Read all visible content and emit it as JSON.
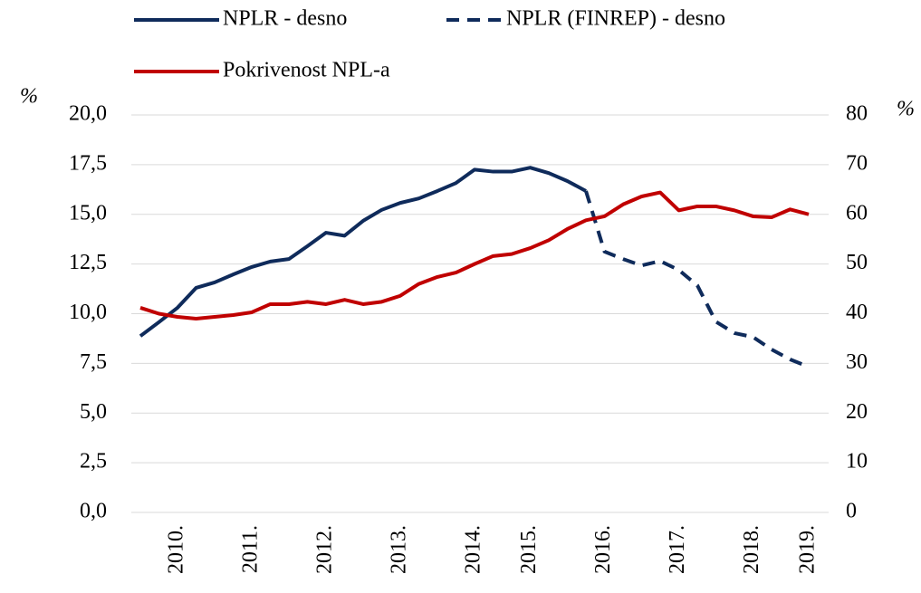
{
  "chart_data": {
    "type": "line",
    "ylabel": "%",
    "y2label": "%",
    "categories": [
      null,
      null,
      "2010.",
      null,
      null,
      null,
      "2011.",
      null,
      null,
      null,
      "2012.",
      null,
      null,
      null,
      "2013.",
      null,
      null,
      null,
      "2014.",
      null,
      null,
      "2015.",
      null,
      null,
      null,
      "2016.",
      null,
      null,
      null,
      "2017.",
      null,
      null,
      null,
      "2018.",
      null,
      null,
      "2019."
    ],
    "series": [
      {
        "name": "NPLR - desno",
        "color": "#0f2b5b",
        "dash": false,
        "axis": "y2",
        "values": [
          35.5,
          38.3,
          41.2,
          45.2,
          46.3,
          47.9,
          49.4,
          50.5,
          51.0,
          53.6,
          56.3,
          55.7,
          58.7,
          60.9,
          62.3,
          63.2,
          64.7,
          66.3,
          69.0,
          68.6,
          68.6,
          69.4,
          68.3,
          66.7,
          64.7,
          null,
          null,
          null,
          null,
          null,
          null,
          null,
          null,
          null,
          null,
          null,
          null
        ]
      },
      {
        "name": "NPLR (FINREP) - desno",
        "color": "#0f2b5b",
        "dash": true,
        "axis": "y2",
        "values": [
          null,
          null,
          null,
          null,
          null,
          null,
          null,
          null,
          null,
          null,
          null,
          null,
          null,
          null,
          null,
          null,
          null,
          null,
          null,
          null,
          null,
          null,
          null,
          null,
          64.7,
          52.5,
          51.0,
          49.7,
          50.6,
          48.8,
          45.7,
          38.4,
          36.1,
          35.3,
          32.8,
          30.8,
          29.3
        ]
      },
      {
        "name": "Pokrivenost NPL-a",
        "color": "#c00000",
        "dash": false,
        "values": [
          10.3,
          10.0,
          9.84,
          9.75,
          9.84,
          9.93,
          10.07,
          10.48,
          10.48,
          10.6,
          10.48,
          10.7,
          10.48,
          10.6,
          10.9,
          11.5,
          11.85,
          12.07,
          12.5,
          12.9,
          13.0,
          13.3,
          13.7,
          14.26,
          14.7,
          14.9,
          15.5,
          15.9,
          16.1,
          15.2,
          15.4,
          15.4,
          15.2,
          14.9,
          14.85,
          15.25,
          15.0
        ]
      }
    ],
    "ylim": [
      0,
      20
    ],
    "yticks": [
      {
        "value": 0,
        "label": "0,0"
      },
      {
        "value": 2.5,
        "label": "2,5"
      },
      {
        "value": 5,
        "label": "5,0"
      },
      {
        "value": 7.5,
        "label": "7,5"
      },
      {
        "value": 10,
        "label": "10,0"
      },
      {
        "value": 12.5,
        "label": "12,5"
      },
      {
        "value": 15,
        "label": "15,0"
      },
      {
        "value": 17.5,
        "label": "17,5"
      },
      {
        "value": 20,
        "label": "20,0"
      }
    ],
    "y2lim": [
      0,
      80
    ],
    "y2ticks": [
      0,
      10,
      20,
      30,
      40,
      50,
      60,
      70,
      80
    ],
    "grid": true
  }
}
